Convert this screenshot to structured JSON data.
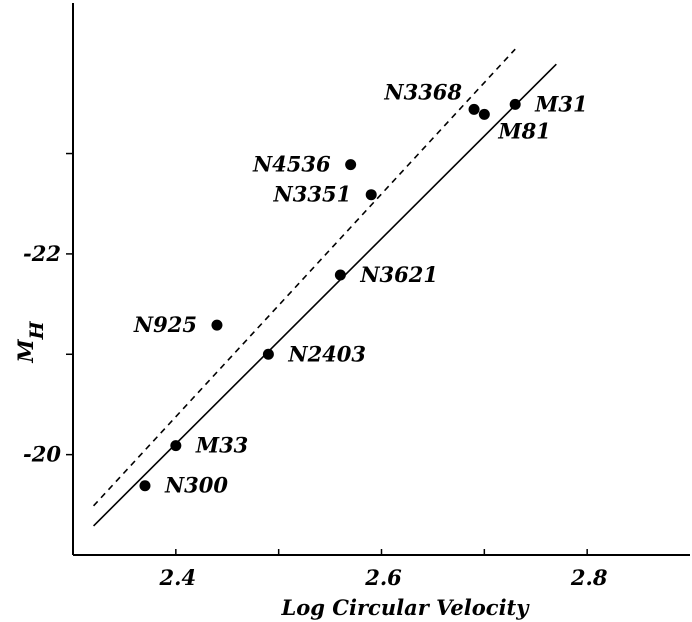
{
  "chart_data": {
    "type": "scatter",
    "xlabel": "Log Circular Velocity",
    "ylabel": "M",
    "ylabel_sub": "H",
    "xlim": [
      2.3,
      2.9
    ],
    "ylim": [
      -19.0,
      -24.5
    ],
    "y_inverted": true,
    "x_ticks": [
      2.4,
      2.5,
      2.6,
      2.7,
      2.8
    ],
    "x_tick_labels": [
      "2.4",
      "",
      "2.6",
      "",
      "2.8"
    ],
    "y_ticks": [
      -20,
      -21,
      -22,
      -23
    ],
    "y_tick_labels": [
      "-20",
      "",
      "-22",
      ""
    ],
    "grid": false,
    "points": [
      {
        "name": "N300",
        "x": 2.37,
        "y": -19.69,
        "label_side": "right"
      },
      {
        "name": "M33",
        "x": 2.4,
        "y": -20.09,
        "label_side": "right"
      },
      {
        "name": "N2403",
        "x": 2.49,
        "y": -21.0,
        "label_side": "right"
      },
      {
        "name": "N925",
        "x": 2.44,
        "y": -21.29,
        "label_side": "left"
      },
      {
        "name": "N3621",
        "x": 2.56,
        "y": -21.79,
        "label_side": "right"
      },
      {
        "name": "N3351",
        "x": 2.59,
        "y": -22.59,
        "label_side": "left"
      },
      {
        "name": "N4536",
        "x": 2.57,
        "y": -22.89,
        "label_side": "left"
      },
      {
        "name": "M81",
        "x": 2.7,
        "y": -23.39,
        "label_side": "below-right"
      },
      {
        "name": "N3368",
        "x": 2.69,
        "y": -23.44,
        "label_side": "above-left"
      },
      {
        "name": "M31",
        "x": 2.73,
        "y": -23.49,
        "label_side": "right"
      }
    ],
    "lines": [
      {
        "style": "solid",
        "x": [
          2.32,
          2.77
        ],
        "y": [
          -19.29,
          -23.89
        ]
      },
      {
        "style": "dashed",
        "x": [
          2.32,
          2.73
        ],
        "y": [
          -19.49,
          -24.04
        ]
      }
    ]
  }
}
